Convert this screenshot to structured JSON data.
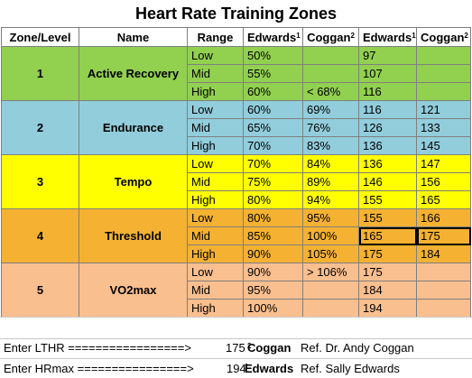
{
  "title": "Heart Rate Training Zones",
  "headers": {
    "zone": "Zone/Level",
    "name": "Name",
    "range": "Range",
    "edwards": "Edwards",
    "coggan": "Coggan",
    "edwards_sup": "1",
    "coggan_sup": "2"
  },
  "colors": {
    "zone1": "#92d050",
    "zone2": "#92cddc",
    "zone3": "#ffff00",
    "zone4": "#f4b132",
    "zone5": "#fabf8f"
  },
  "zones": [
    {
      "zone": "1",
      "name": "Active Recovery",
      "rows": [
        {
          "range": "Low",
          "ep": "50%",
          "cp": "",
          "eb": "97",
          "cb": ""
        },
        {
          "range": "Mid",
          "ep": "55%",
          "cp": "",
          "eb": "107",
          "cb": ""
        },
        {
          "range": "High",
          "ep": "60%",
          "cp": "< 68%",
          "eb": "116",
          "cb": ""
        }
      ]
    },
    {
      "zone": "2",
      "name": "Endurance",
      "rows": [
        {
          "range": "Low",
          "ep": "60%",
          "cp": "69%",
          "eb": "116",
          "cb": "121"
        },
        {
          "range": "Mid",
          "ep": "65%",
          "cp": "76%",
          "eb": "126",
          "cb": "133"
        },
        {
          "range": "High",
          "ep": "70%",
          "cp": "83%",
          "eb": "136",
          "cb": "145"
        }
      ]
    },
    {
      "zone": "3",
      "name": "Tempo",
      "rows": [
        {
          "range": "Low",
          "ep": "70%",
          "cp": "84%",
          "eb": "136",
          "cb": "147"
        },
        {
          "range": "Mid",
          "ep": "75%",
          "cp": "89%",
          "eb": "146",
          "cb": "156"
        },
        {
          "range": "High",
          "ep": "80%",
          "cp": "94%",
          "eb": "155",
          "cb": "165"
        }
      ]
    },
    {
      "zone": "4",
      "name": "Threshold",
      "rows": [
        {
          "range": "Low",
          "ep": "80%",
          "cp": "95%",
          "eb": "155",
          "cb": "166"
        },
        {
          "range": "Mid",
          "ep": "85%",
          "cp": "100%",
          "eb": "165",
          "cb": "175"
        },
        {
          "range": "High",
          "ep": "90%",
          "cp": "105%",
          "eb": "175",
          "cb": "184"
        }
      ]
    },
    {
      "zone": "5",
      "name": "VO2max",
      "rows": [
        {
          "range": "Low",
          "ep": "90%",
          "cp": "> 106%",
          "eb": "175",
          "cb": ""
        },
        {
          "range": "Mid",
          "ep": "95%",
          "cp": "",
          "eb": "184",
          "cb": ""
        },
        {
          "range": "High",
          "ep": "100%",
          "cp": "",
          "eb": "194",
          "cb": ""
        }
      ]
    }
  ],
  "inputs": {
    "lthr_label": "Enter LTHR =================>",
    "lthr_value": "175",
    "hrmax_label": "Enter HRmax ================>",
    "hrmax_value": "194"
  },
  "refs": {
    "coggan_name": "Coggan",
    "coggan_sup": "2",
    "coggan_ref": "Ref. Dr. Andy Coggan",
    "edwards_name": "Edwards",
    "edwards_sup": "1",
    "edwards_ref": "Ref. Sally Edwards"
  }
}
